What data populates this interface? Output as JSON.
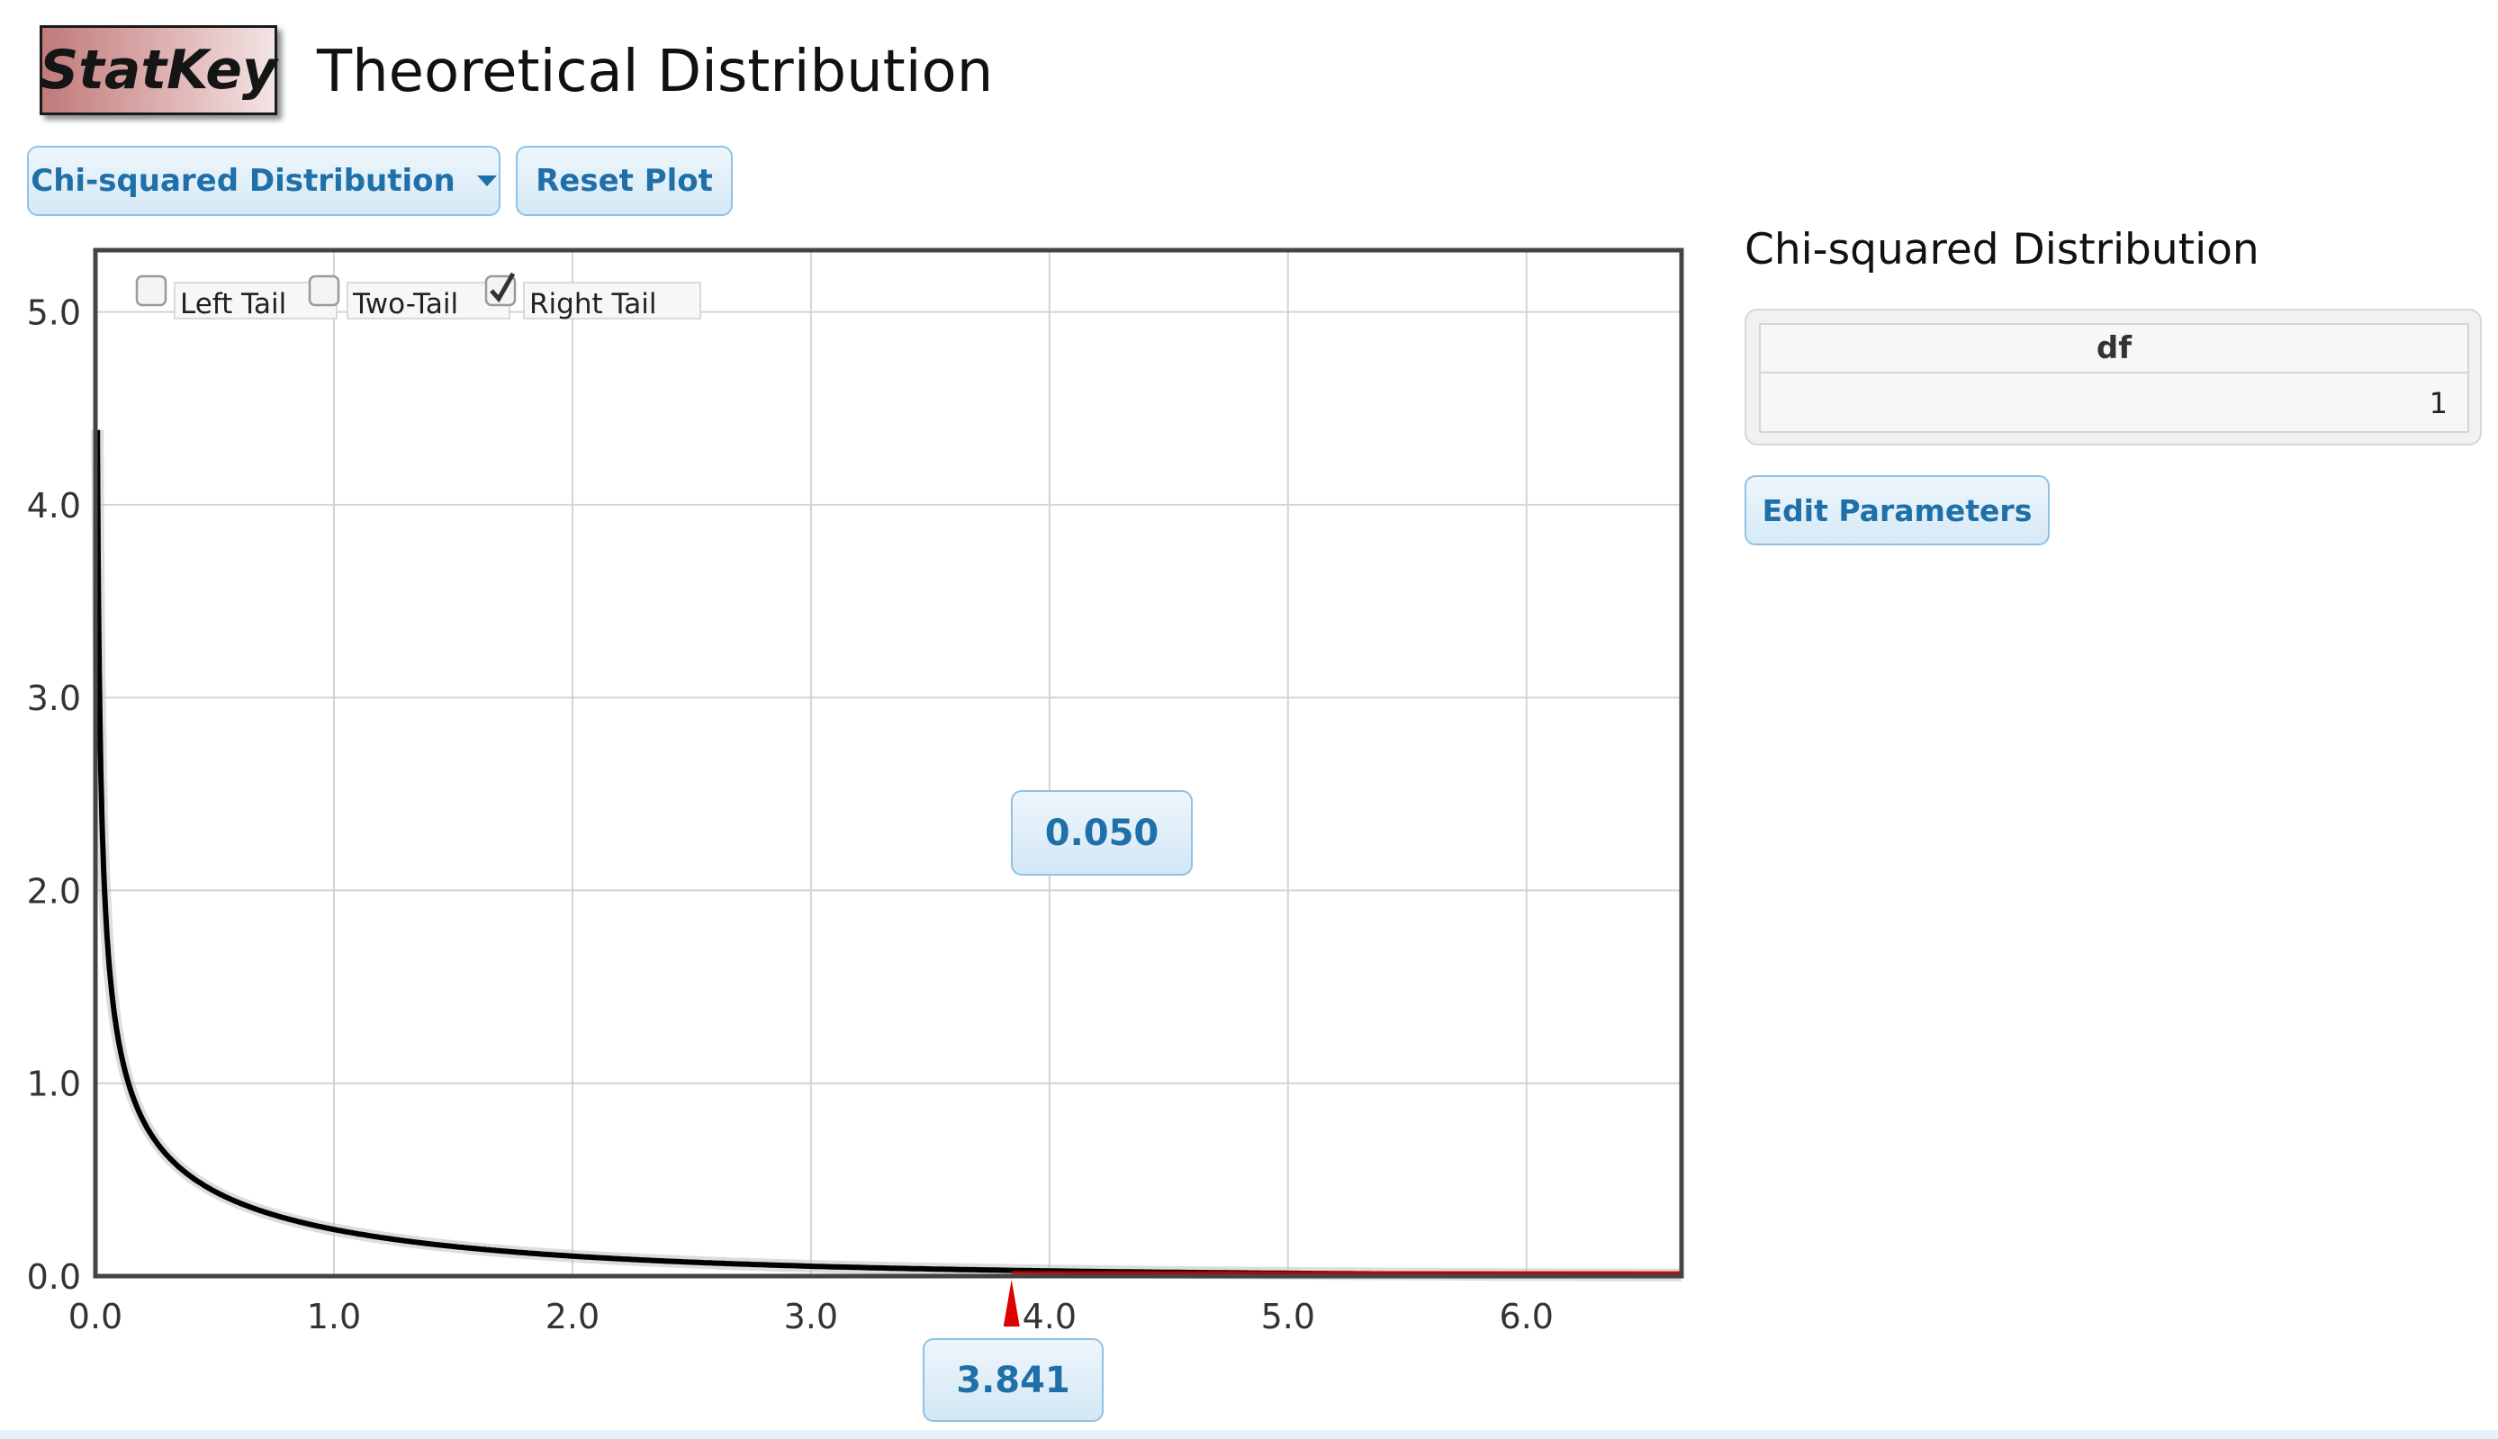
{
  "header": {
    "logo_text": "StatKey",
    "title": "Theoretical Distribution"
  },
  "toolbar": {
    "distribution_select": "Chi-squared Distribution",
    "reset_label": "Reset Plot"
  },
  "tail_options": [
    {
      "label": "Left Tail",
      "checked": false
    },
    {
      "label": "Two-Tail",
      "checked": false
    },
    {
      "label": "Right Tail",
      "checked": true
    }
  ],
  "chart_data": {
    "type": "line",
    "title": "",
    "xlabel": "",
    "ylabel": "",
    "xlim": [
      0,
      6.65
    ],
    "ylim": [
      0,
      5.0
    ],
    "x_ticks": [
      "0.0",
      "1.0",
      "2.0",
      "3.0",
      "4.0",
      "5.0",
      "6.0"
    ],
    "y_ticks": [
      "0.0",
      "1.0",
      "2.0",
      "3.0",
      "4.0",
      "5.0"
    ],
    "grid": true,
    "series": [
      {
        "values_description": "chi-squared density, df = 1",
        "x": [
          0.01,
          0.02,
          0.05,
          0.1,
          0.2,
          0.3,
          0.5,
          0.75,
          1.0,
          1.5,
          2.0,
          2.5,
          3.0,
          3.5,
          4.0,
          4.5,
          5.0,
          5.5,
          6.0,
          6.65
        ],
        "y": [
          3.97,
          2.81,
          1.76,
          1.2,
          0.81,
          0.63,
          0.44,
          0.31,
          0.24,
          0.15,
          0.1,
          0.07,
          0.05,
          0.03,
          0.02,
          0.02,
          0.01,
          0.01,
          0.01,
          0.0
        ]
      }
    ],
    "cutoff_x": "3.841",
    "tail_area": "0.050",
    "line_color": "#000000",
    "marker_color": "#e00000"
  },
  "parameters": {
    "title": "Chi-squared Distribution",
    "df_header": "df",
    "df_value": "1",
    "edit_label": "Edit Parameters"
  }
}
